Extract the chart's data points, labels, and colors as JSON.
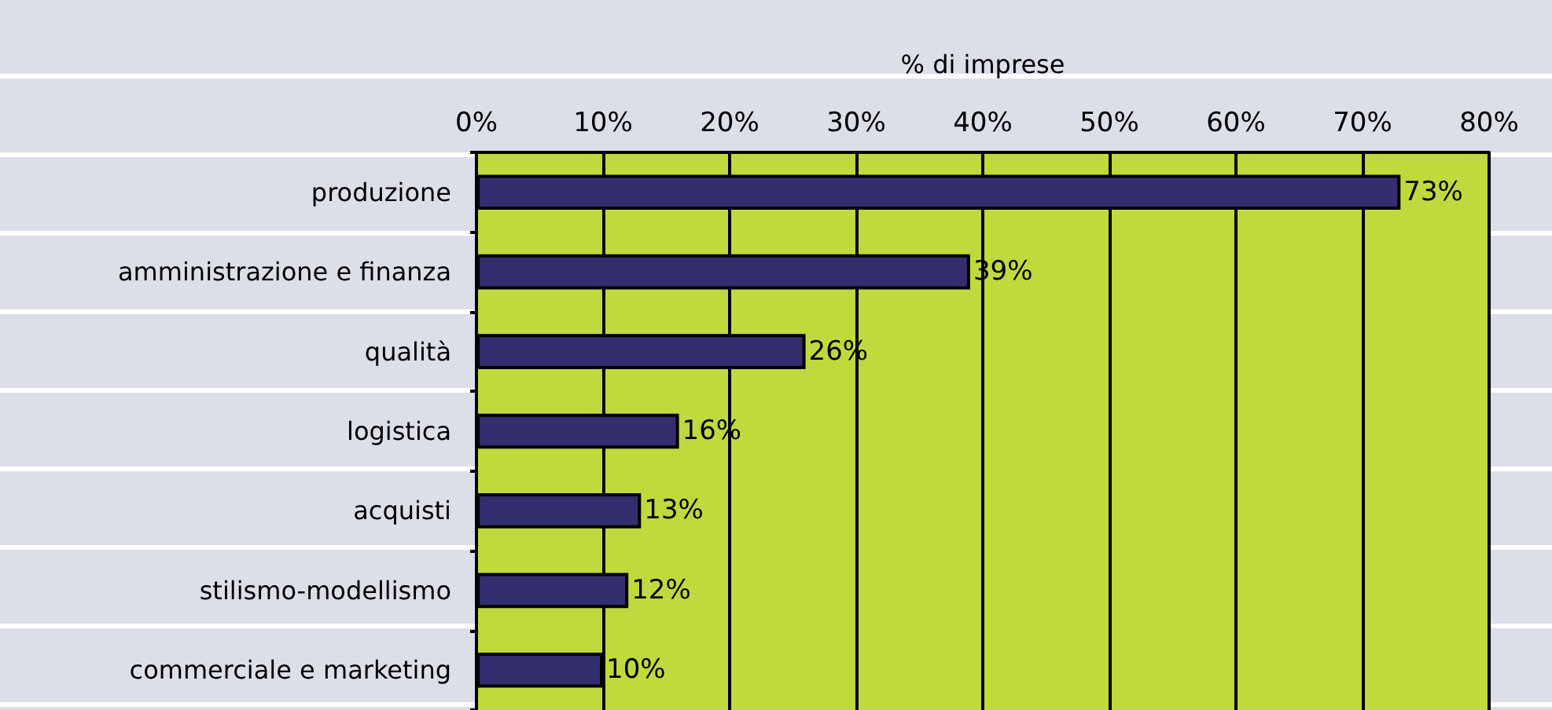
{
  "chart_data": {
    "type": "bar",
    "orientation": "horizontal",
    "xlabel": "% di imprese",
    "categories": [
      "produzione",
      "amministrazione e finanza",
      "qualità",
      "logistica",
      "acquisti",
      "stilismo-modellismo",
      "commerciale e marketing"
    ],
    "values": [
      73,
      39,
      26,
      16,
      13,
      12,
      10
    ],
    "value_labels": [
      "73%",
      "39%",
      "26%",
      "16%",
      "13%",
      "12%",
      "10%"
    ],
    "color": "#332e6e",
    "xlim": [
      0,
      80
    ],
    "xticks": [
      {
        "value": 0,
        "label": "0%"
      },
      {
        "value": 10,
        "label": "10%"
      },
      {
        "value": 20,
        "label": "20%"
      },
      {
        "value": 30,
        "label": "30%"
      },
      {
        "value": 40,
        "label": "40%"
      },
      {
        "value": 50,
        "label": "50%"
      },
      {
        "value": 60,
        "label": "60%"
      },
      {
        "value": 70,
        "label": "70%"
      },
      {
        "value": 80,
        "label": "80%"
      }
    ],
    "grid": "x"
  }
}
